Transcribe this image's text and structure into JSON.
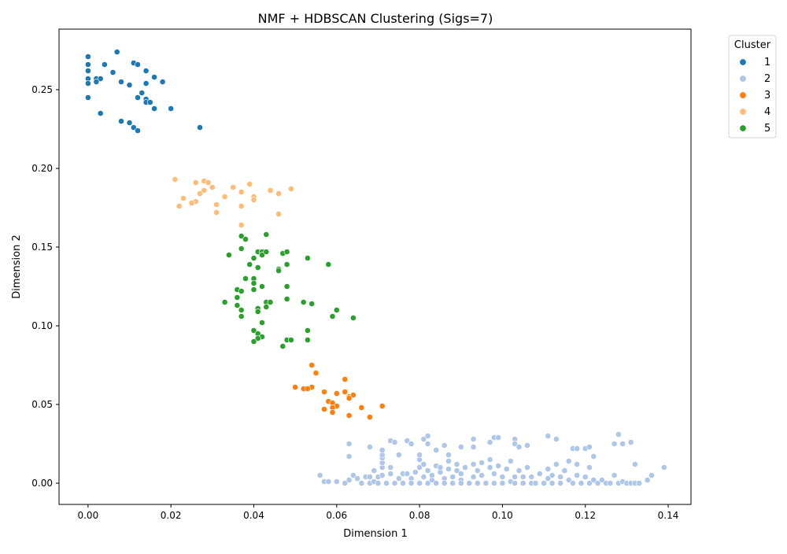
{
  "chart_data": {
    "type": "scatter",
    "title": "NMF + HDBSCAN Clustering (Sigs=7)",
    "xlabel": "Dimension 1",
    "ylabel": "Dimension 2",
    "xlim": [
      -0.007,
      0.1455
    ],
    "ylim": [
      -0.0135,
      0.2885
    ],
    "x_ticks": [
      0.0,
      0.02,
      0.04,
      0.06,
      0.08,
      0.1,
      0.12,
      0.14
    ],
    "y_ticks": [
      0.0,
      0.05,
      0.1,
      0.15,
      0.2,
      0.25
    ],
    "grid": false,
    "legend": {
      "title": "Cluster",
      "placement": "outside-top-right"
    },
    "series": [
      {
        "name": "1",
        "color": "#1f77b4",
        "points": [
          [
            0.0,
            0.271
          ],
          [
            0.0,
            0.266
          ],
          [
            0.0,
            0.262
          ],
          [
            0.0,
            0.257
          ],
          [
            0.0,
            0.254
          ],
          [
            0.0,
            0.245
          ],
          [
            0.007,
            0.274
          ],
          [
            0.004,
            0.266
          ],
          [
            0.006,
            0.261
          ],
          [
            0.002,
            0.257
          ],
          [
            0.003,
            0.257
          ],
          [
            0.002,
            0.255
          ],
          [
            0.008,
            0.255
          ],
          [
            0.01,
            0.253
          ],
          [
            0.011,
            0.267
          ],
          [
            0.012,
            0.266
          ],
          [
            0.014,
            0.262
          ],
          [
            0.016,
            0.258
          ],
          [
            0.018,
            0.255
          ],
          [
            0.014,
            0.254
          ],
          [
            0.013,
            0.248
          ],
          [
            0.012,
            0.245
          ],
          [
            0.014,
            0.244
          ],
          [
            0.014,
            0.242
          ],
          [
            0.015,
            0.242
          ],
          [
            0.016,
            0.238
          ],
          [
            0.02,
            0.238
          ],
          [
            0.003,
            0.235
          ],
          [
            0.008,
            0.23
          ],
          [
            0.01,
            0.229
          ],
          [
            0.011,
            0.226
          ],
          [
            0.012,
            0.224
          ],
          [
            0.027,
            0.226
          ]
        ]
      },
      {
        "name": "2",
        "color": "#aec7e8",
        "points": [
          [
            0.056,
            0.005
          ],
          [
            0.057,
            0.001
          ],
          [
            0.058,
            0.001
          ],
          [
            0.06,
            0.001
          ],
          [
            0.062,
            0.0
          ],
          [
            0.063,
            0.002
          ],
          [
            0.064,
            0.005
          ],
          [
            0.065,
            0.003
          ],
          [
            0.066,
            0.0
          ],
          [
            0.067,
            0.004
          ],
          [
            0.068,
            0.004
          ],
          [
            0.068,
            0.0
          ],
          [
            0.069,
            0.008
          ],
          [
            0.069,
            0.001
          ],
          [
            0.07,
            0.004
          ],
          [
            0.07,
            0.0
          ],
          [
            0.071,
            0.005
          ],
          [
            0.071,
            0.01
          ],
          [
            0.071,
            0.013
          ],
          [
            0.071,
            0.016
          ],
          [
            0.071,
            0.018
          ],
          [
            0.071,
            0.021
          ],
          [
            0.072,
            0.0
          ],
          [
            0.073,
            0.006
          ],
          [
            0.073,
            0.01
          ],
          [
            0.074,
            0.0
          ],
          [
            0.075,
            0.003
          ],
          [
            0.075,
            0.018
          ],
          [
            0.076,
            0.006
          ],
          [
            0.076,
            0.0
          ],
          [
            0.077,
            0.006
          ],
          [
            0.078,
            0.003
          ],
          [
            0.078,
            0.0
          ],
          [
            0.079,
            0.007
          ],
          [
            0.08,
            0.0
          ],
          [
            0.08,
            0.01
          ],
          [
            0.08,
            0.015
          ],
          [
            0.08,
            0.018
          ],
          [
            0.081,
            0.004
          ],
          [
            0.081,
            0.012
          ],
          [
            0.082,
            0.0
          ],
          [
            0.082,
            0.008
          ],
          [
            0.083,
            0.002
          ],
          [
            0.083,
            0.005
          ],
          [
            0.084,
            0.0
          ],
          [
            0.084,
            0.011
          ],
          [
            0.085,
            0.007
          ],
          [
            0.085,
            0.01
          ],
          [
            0.086,
            0.003
          ],
          [
            0.086,
            0.0
          ],
          [
            0.087,
            0.009
          ],
          [
            0.087,
            0.014
          ],
          [
            0.087,
            0.018
          ],
          [
            0.088,
            0.004
          ],
          [
            0.088,
            0.0
          ],
          [
            0.089,
            0.008
          ],
          [
            0.089,
            0.012
          ],
          [
            0.09,
            0.002
          ],
          [
            0.09,
            0.0
          ],
          [
            0.09,
            0.006
          ],
          [
            0.091,
            0.01
          ],
          [
            0.092,
            0.0
          ],
          [
            0.093,
            0.004
          ],
          [
            0.093,
            0.012
          ],
          [
            0.094,
            0.0
          ],
          [
            0.094,
            0.008
          ],
          [
            0.095,
            0.005
          ],
          [
            0.095,
            0.013
          ],
          [
            0.096,
            0.0
          ],
          [
            0.097,
            0.01
          ],
          [
            0.097,
            0.015
          ],
          [
            0.098,
            0.0
          ],
          [
            0.098,
            0.006
          ],
          [
            0.099,
            0.011
          ],
          [
            0.1,
            0.0
          ],
          [
            0.1,
            0.004
          ],
          [
            0.101,
            0.009
          ],
          [
            0.102,
            0.001
          ],
          [
            0.102,
            0.014
          ],
          [
            0.103,
            0.004
          ],
          [
            0.103,
            0.0
          ],
          [
            0.104,
            0.008
          ],
          [
            0.105,
            0.0
          ],
          [
            0.105,
            0.004
          ],
          [
            0.106,
            0.01
          ],
          [
            0.107,
            0.0
          ],
          [
            0.107,
            0.004
          ],
          [
            0.108,
            0.0
          ],
          [
            0.109,
            0.006
          ],
          [
            0.11,
            0.0
          ],
          [
            0.111,
            0.003
          ],
          [
            0.111,
            0.009
          ],
          [
            0.112,
            0.0
          ],
          [
            0.112,
            0.005
          ],
          [
            0.113,
            0.012
          ],
          [
            0.114,
            0.0
          ],
          [
            0.114,
            0.004
          ],
          [
            0.115,
            0.008
          ],
          [
            0.116,
            0.002
          ],
          [
            0.116,
            0.014
          ],
          [
            0.117,
            0.0
          ],
          [
            0.118,
            0.005
          ],
          [
            0.118,
            0.012
          ],
          [
            0.119,
            0.0
          ],
          [
            0.12,
            0.004
          ],
          [
            0.121,
            0.0
          ],
          [
            0.121,
            0.01
          ],
          [
            0.122,
            0.017
          ],
          [
            0.122,
            0.002
          ],
          [
            0.123,
            0.0
          ],
          [
            0.124,
            0.002
          ],
          [
            0.125,
            0.0
          ],
          [
            0.126,
            0.0
          ],
          [
            0.127,
            0.005
          ],
          [
            0.128,
            0.0
          ],
          [
            0.129,
            0.001
          ],
          [
            0.13,
            0.0
          ],
          [
            0.131,
            0.0
          ],
          [
            0.132,
            0.0
          ],
          [
            0.133,
            0.0
          ],
          [
            0.135,
            0.002
          ],
          [
            0.136,
            0.005
          ],
          [
            0.139,
            0.01
          ],
          [
            0.063,
            0.025
          ],
          [
            0.063,
            0.017
          ],
          [
            0.068,
            0.023
          ],
          [
            0.073,
            0.027
          ],
          [
            0.074,
            0.026
          ],
          [
            0.077,
            0.027
          ],
          [
            0.078,
            0.025
          ],
          [
            0.081,
            0.028
          ],
          [
            0.082,
            0.03
          ],
          [
            0.082,
            0.025
          ],
          [
            0.084,
            0.021
          ],
          [
            0.086,
            0.024
          ],
          [
            0.09,
            0.023
          ],
          [
            0.093,
            0.028
          ],
          [
            0.093,
            0.023
          ],
          [
            0.097,
            0.026
          ],
          [
            0.098,
            0.029
          ],
          [
            0.099,
            0.029
          ],
          [
            0.103,
            0.028
          ],
          [
            0.103,
            0.025
          ],
          [
            0.104,
            0.023
          ],
          [
            0.106,
            0.024
          ],
          [
            0.111,
            0.03
          ],
          [
            0.113,
            0.028
          ],
          [
            0.117,
            0.022
          ],
          [
            0.118,
            0.022
          ],
          [
            0.12,
            0.022
          ],
          [
            0.121,
            0.023
          ],
          [
            0.127,
            0.025
          ],
          [
            0.128,
            0.031
          ],
          [
            0.129,
            0.025
          ],
          [
            0.131,
            0.026
          ],
          [
            0.132,
            0.012
          ]
        ]
      },
      {
        "name": "3",
        "color": "#ff7f0e",
        "points": [
          [
            0.054,
            0.075
          ],
          [
            0.055,
            0.07
          ],
          [
            0.062,
            0.066
          ],
          [
            0.05,
            0.061
          ],
          [
            0.052,
            0.06
          ],
          [
            0.054,
            0.061
          ],
          [
            0.053,
            0.06
          ],
          [
            0.057,
            0.058
          ],
          [
            0.06,
            0.057
          ],
          [
            0.062,
            0.058
          ],
          [
            0.063,
            0.055
          ],
          [
            0.064,
            0.056
          ],
          [
            0.058,
            0.052
          ],
          [
            0.059,
            0.051
          ],
          [
            0.06,
            0.049
          ],
          [
            0.059,
            0.048
          ],
          [
            0.063,
            0.054
          ],
          [
            0.071,
            0.049
          ],
          [
            0.057,
            0.047
          ],
          [
            0.059,
            0.045
          ],
          [
            0.063,
            0.043
          ],
          [
            0.066,
            0.048
          ],
          [
            0.068,
            0.042
          ]
        ]
      },
      {
        "name": "4",
        "color": "#ffbb78",
        "points": [
          [
            0.021,
            0.193
          ],
          [
            0.026,
            0.191
          ],
          [
            0.028,
            0.192
          ],
          [
            0.029,
            0.191
          ],
          [
            0.039,
            0.19
          ],
          [
            0.049,
            0.187
          ],
          [
            0.035,
            0.188
          ],
          [
            0.03,
            0.188
          ],
          [
            0.028,
            0.186
          ],
          [
            0.027,
            0.184
          ],
          [
            0.037,
            0.185
          ],
          [
            0.04,
            0.182
          ],
          [
            0.044,
            0.186
          ],
          [
            0.046,
            0.184
          ],
          [
            0.033,
            0.182
          ],
          [
            0.023,
            0.181
          ],
          [
            0.026,
            0.179
          ],
          [
            0.025,
            0.178
          ],
          [
            0.04,
            0.18
          ],
          [
            0.022,
            0.176
          ],
          [
            0.031,
            0.177
          ],
          [
            0.037,
            0.176
          ],
          [
            0.031,
            0.172
          ],
          [
            0.046,
            0.171
          ],
          [
            0.037,
            0.164
          ]
        ]
      },
      {
        "name": "5",
        "color": "#2ca02c",
        "points": [
          [
            0.037,
            0.157
          ],
          [
            0.038,
            0.155
          ],
          [
            0.043,
            0.158
          ],
          [
            0.034,
            0.145
          ],
          [
            0.037,
            0.149
          ],
          [
            0.041,
            0.147
          ],
          [
            0.042,
            0.147
          ],
          [
            0.042,
            0.145
          ],
          [
            0.04,
            0.143
          ],
          [
            0.043,
            0.147
          ],
          [
            0.047,
            0.146
          ],
          [
            0.048,
            0.147
          ],
          [
            0.053,
            0.143
          ],
          [
            0.048,
            0.139
          ],
          [
            0.046,
            0.136
          ],
          [
            0.046,
            0.135
          ],
          [
            0.039,
            0.139
          ],
          [
            0.041,
            0.137
          ],
          [
            0.058,
            0.139
          ],
          [
            0.038,
            0.13
          ],
          [
            0.04,
            0.13
          ],
          [
            0.04,
            0.127
          ],
          [
            0.042,
            0.125
          ],
          [
            0.048,
            0.125
          ],
          [
            0.036,
            0.123
          ],
          [
            0.037,
            0.122
          ],
          [
            0.04,
            0.123
          ],
          [
            0.036,
            0.118
          ],
          [
            0.033,
            0.115
          ],
          [
            0.036,
            0.113
          ],
          [
            0.037,
            0.11
          ],
          [
            0.041,
            0.111
          ],
          [
            0.043,
            0.115
          ],
          [
            0.044,
            0.115
          ],
          [
            0.043,
            0.112
          ],
          [
            0.041,
            0.109
          ],
          [
            0.048,
            0.117
          ],
          [
            0.052,
            0.115
          ],
          [
            0.054,
            0.114
          ],
          [
            0.059,
            0.106
          ],
          [
            0.06,
            0.11
          ],
          [
            0.064,
            0.105
          ],
          [
            0.037,
            0.106
          ],
          [
            0.042,
            0.102
          ],
          [
            0.04,
            0.097
          ],
          [
            0.041,
            0.095
          ],
          [
            0.042,
            0.093
          ],
          [
            0.041,
            0.092
          ],
          [
            0.04,
            0.09
          ],
          [
            0.047,
            0.087
          ],
          [
            0.048,
            0.091
          ],
          [
            0.049,
            0.091
          ],
          [
            0.053,
            0.091
          ],
          [
            0.053,
            0.097
          ]
        ]
      }
    ]
  }
}
